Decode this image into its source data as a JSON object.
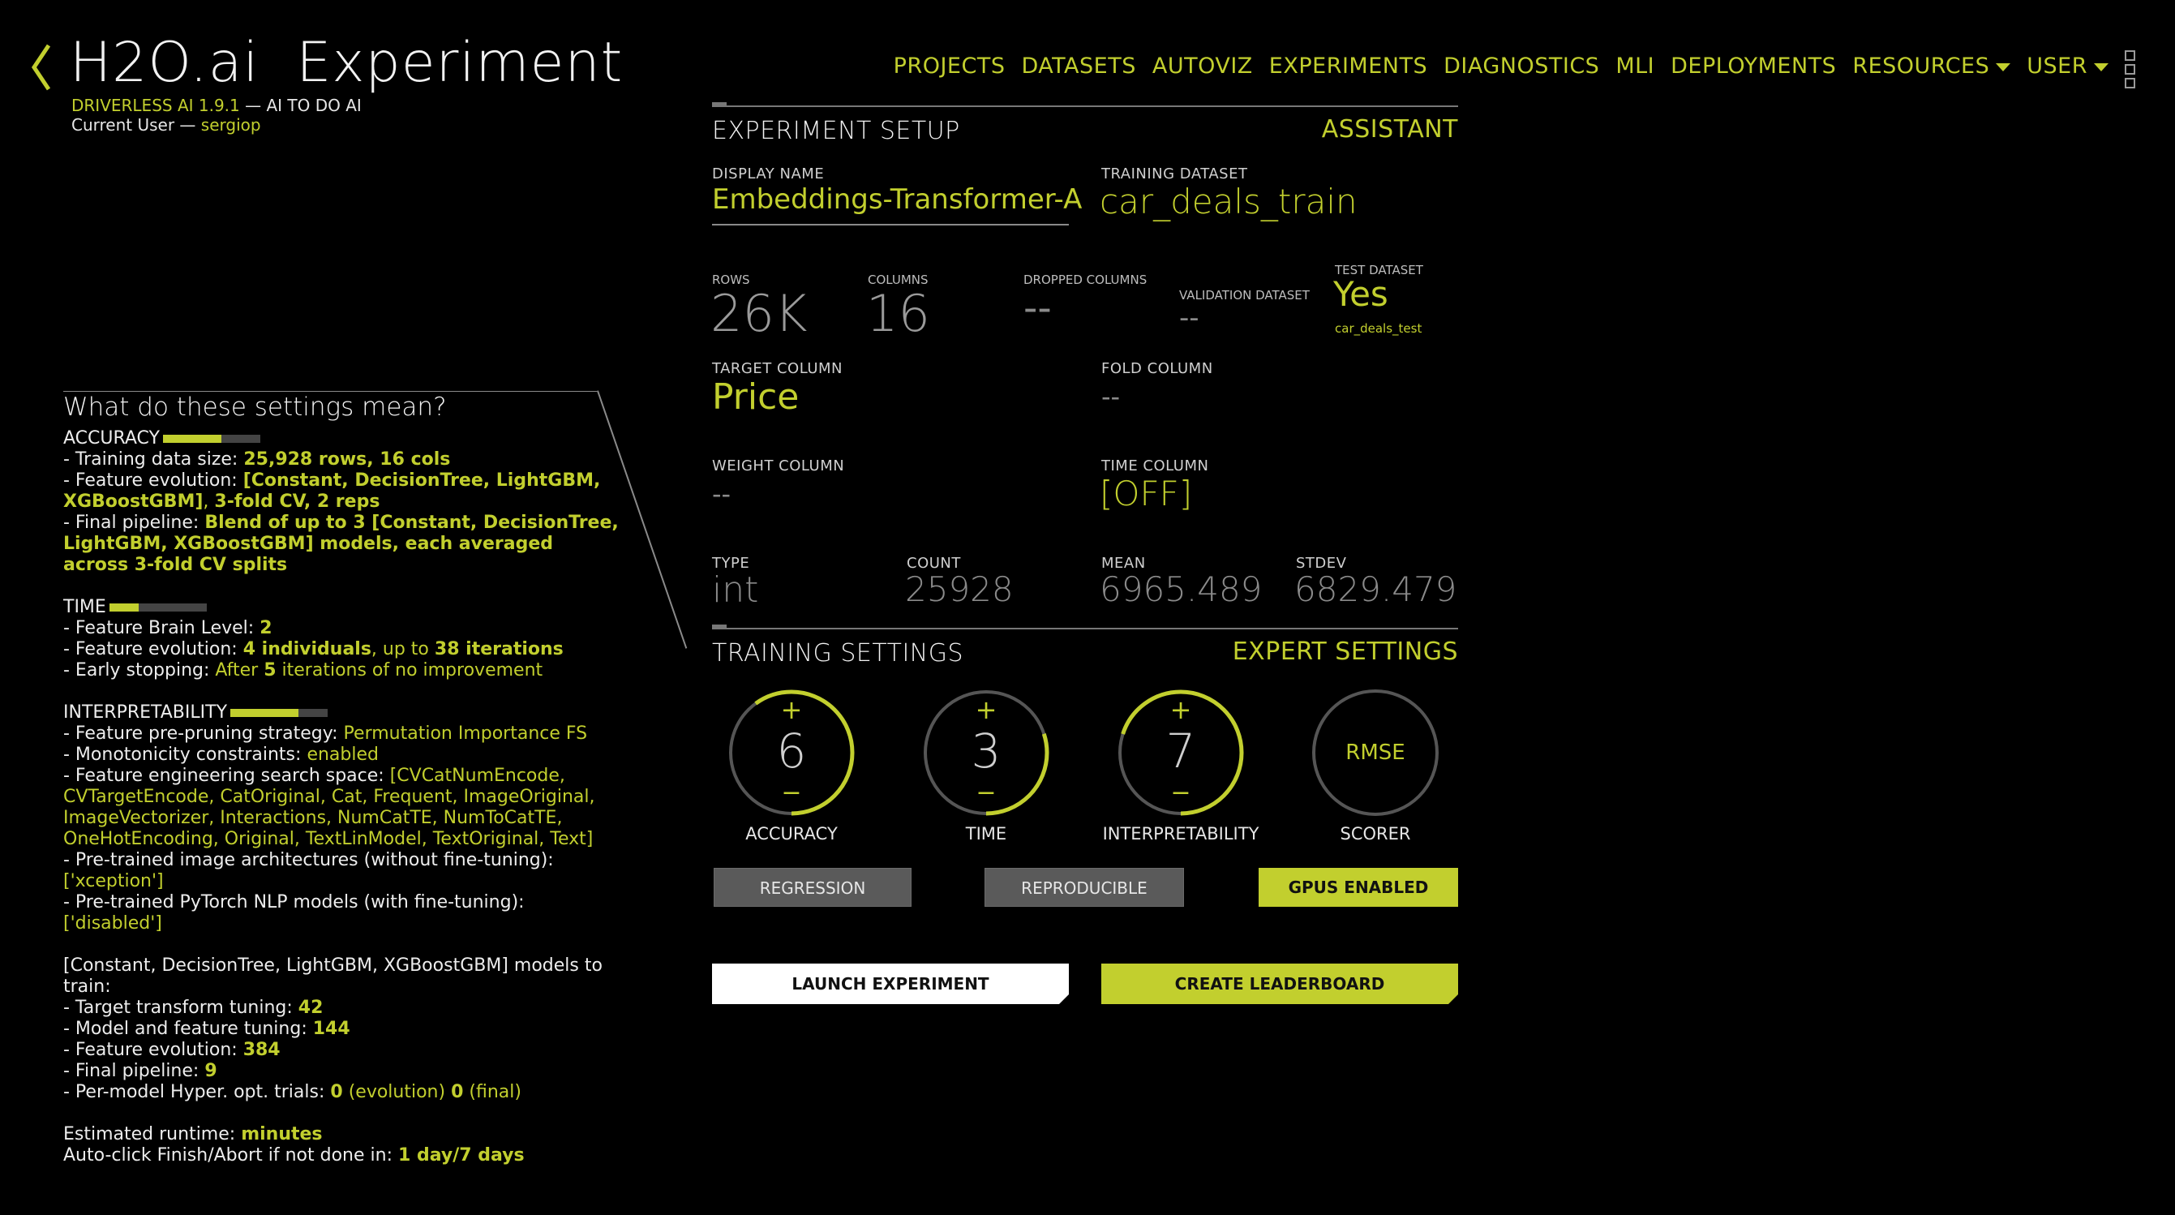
{
  "header": {
    "logo": "H2O.ai",
    "title": "Experiment",
    "product": "DRIVERLESS AI 1.9.1",
    "tagline": " — AI TO DO AI",
    "user_label": "Current User — ",
    "user_name": "sergiop"
  },
  "nav": {
    "items": [
      "PROJECTS",
      "DATASETS",
      "AUTOVIZ",
      "EXPERIMENTS",
      "DIAGNOSTICS",
      "MLI",
      "DEPLOYMENTS"
    ],
    "resources": "RESOURCES",
    "user": "USER"
  },
  "help": {
    "title": "What do these settings mean?",
    "accuracy": {
      "label": "ACCURACY",
      "level": 0.6,
      "l1a": "- Training data size: ",
      "l1b": "25,928 rows, 16 cols",
      "l2a": "- Feature evolution: ",
      "l2b": "[Constant, DecisionTree, LightGBM, XGBoostGBM]",
      "l2c": ", ",
      "l2d": "3-fold CV, 2 reps",
      "l3a": "- Final pipeline: ",
      "l3b": "Blend of up to 3 [Constant, DecisionTree, LightGBM, XGBoostGBM] models, each averaged across 3-fold CV splits"
    },
    "time": {
      "label": "TIME",
      "level": 0.3,
      "l1a": "- Feature Brain Level: ",
      "l1b": "2",
      "l2a": "- Feature evolution: ",
      "l2b": "4 individuals",
      "l2c": ", up to ",
      "l2d": "38 iterations",
      "l3a": "- Early stopping: ",
      "l3b": "After ",
      "l3c": "5",
      "l3d": " iterations of no improvement"
    },
    "interpretability": {
      "label": "INTERPRETABILITY",
      "level": 0.7,
      "l1a": "- Feature pre-pruning strategy: ",
      "l1b": "Permutation Importance FS",
      "l2a": "- Monotonicity constraints: ",
      "l2b": "enabled",
      "l3a": "- Feature engineering search space: ",
      "l3b": "[CVCatNumEncode, CVTargetEncode, CatOriginal, Cat, Frequent, ImageOriginal, ImageVectorizer, Interactions, NumCatTE, NumToCatTE, OneHotEncoding, Original, TextLinModel, TextOriginal, Text]",
      "l4a": "- Pre-trained image architectures (without fine-tuning): ",
      "l4b": "['xception']",
      "l5a": "- Pre-trained PyTorch NLP models (with fine-tuning): ",
      "l5b": "['disabled']"
    },
    "models": {
      "title": "[Constant, DecisionTree, LightGBM, XGBoostGBM] models to train:",
      "l1a": "- Target transform tuning: ",
      "l1b": "42",
      "l2a": "- Model and feature tuning: ",
      "l2b": "144",
      "l3a": "- Feature evolution: ",
      "l3b": "384",
      "l4a": "- Final pipeline: ",
      "l4b": "9",
      "l5a": "- Per-model Hyper. opt. trials: ",
      "l5b": "0",
      "l5c": " (evolution) ",
      "l5d": "0",
      "l5e": " (final)"
    },
    "runtime": {
      "l1a": "Estimated runtime: ",
      "l1b": "minutes",
      "l2a": "Auto-click Finish/Abort if not done in: ",
      "l2b": "1 day/7 days"
    }
  },
  "setup": {
    "heading": "EXPERIMENT SETUP",
    "assistant": "ASSISTANT",
    "display_name_label": "DISPLAY NAME",
    "display_name": "Embeddings-Transformer-A",
    "training_dataset_label": "TRAINING DATASET",
    "training_dataset": "car_deals_train",
    "rows_label": "ROWS",
    "rows": "26K",
    "columns_label": "COLUMNS",
    "columns": "16",
    "dropped_label": "DROPPED COLUMNS",
    "dropped": "--",
    "validation_label": "VALIDATION DATASET",
    "validation": "--",
    "test_label": "TEST DATASET",
    "test": "Yes",
    "test_name": "car_deals_test",
    "target_label": "TARGET COLUMN",
    "target": "Price",
    "fold_label": "FOLD COLUMN",
    "fold": "--",
    "weight_label": "WEIGHT COLUMN",
    "weight": "--",
    "time_label": "TIME COLUMN",
    "time": "[OFF]",
    "type_label": "TYPE",
    "type": "int",
    "count_label": "COUNT",
    "count": "25928",
    "mean_label": "MEAN",
    "mean": "6965.489",
    "stdev_label": "STDEV",
    "stdev": "6829.479"
  },
  "training": {
    "heading": "TRAINING SETTINGS",
    "expert": "EXPERT SETTINGS",
    "plus": "+",
    "minus": "−",
    "dials": [
      {
        "label": "ACCURACY",
        "value": "6",
        "fill": 0.6
      },
      {
        "label": "TIME",
        "value": "3",
        "fill": 0.3
      },
      {
        "label": "INTERPRETABILITY",
        "value": "7",
        "fill": 0.7
      }
    ],
    "scorer": {
      "label": "SCORER",
      "value": "RMSE"
    },
    "regression": "REGRESSION",
    "reproducible": "REPRODUCIBLE",
    "gpus": "GPUS ENABLED",
    "launch": "LAUNCH EXPERIMENT",
    "leaderboard": "CREATE LEADERBOARD"
  },
  "colors": {
    "accent": "#c2cf2e",
    "background": "#000000"
  }
}
